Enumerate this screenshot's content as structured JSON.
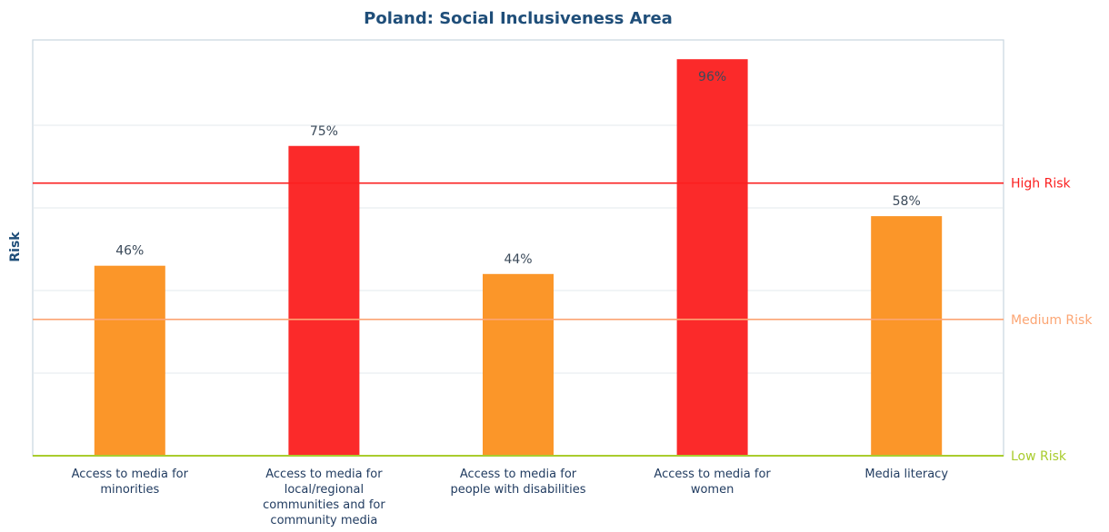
{
  "chart_data": {
    "type": "bar",
    "title": "Poland: Social Inclusiveness Area",
    "ylabel": "Risk",
    "xlabel": "",
    "ylim": [
      0,
      100
    ],
    "grid": true,
    "categories": [
      [
        "Access to media for",
        "minorities"
      ],
      [
        "Access to media for",
        "local/regional",
        "communities and for",
        "community media"
      ],
      [
        "Access to media for",
        "people with disabilities"
      ],
      [
        "Access to media for",
        "women"
      ],
      [
        "Media literacy"
      ]
    ],
    "values": [
      46,
      75,
      44,
      96,
      58
    ],
    "value_labels": [
      "46%",
      "75%",
      "44%",
      "96%",
      "58%"
    ],
    "bar_colors": [
      "#fb9629",
      "#fb2a2a",
      "#fb9629",
      "#fb2a2a",
      "#fb9629"
    ],
    "thresholds": [
      {
        "label": "High Risk",
        "value": 66,
        "color": "#fb2020"
      },
      {
        "label": "Medium Risk",
        "value": 33,
        "color": "#fca573"
      },
      {
        "label": "Low Risk",
        "value": 0,
        "color": "#a9cc2e"
      }
    ]
  }
}
